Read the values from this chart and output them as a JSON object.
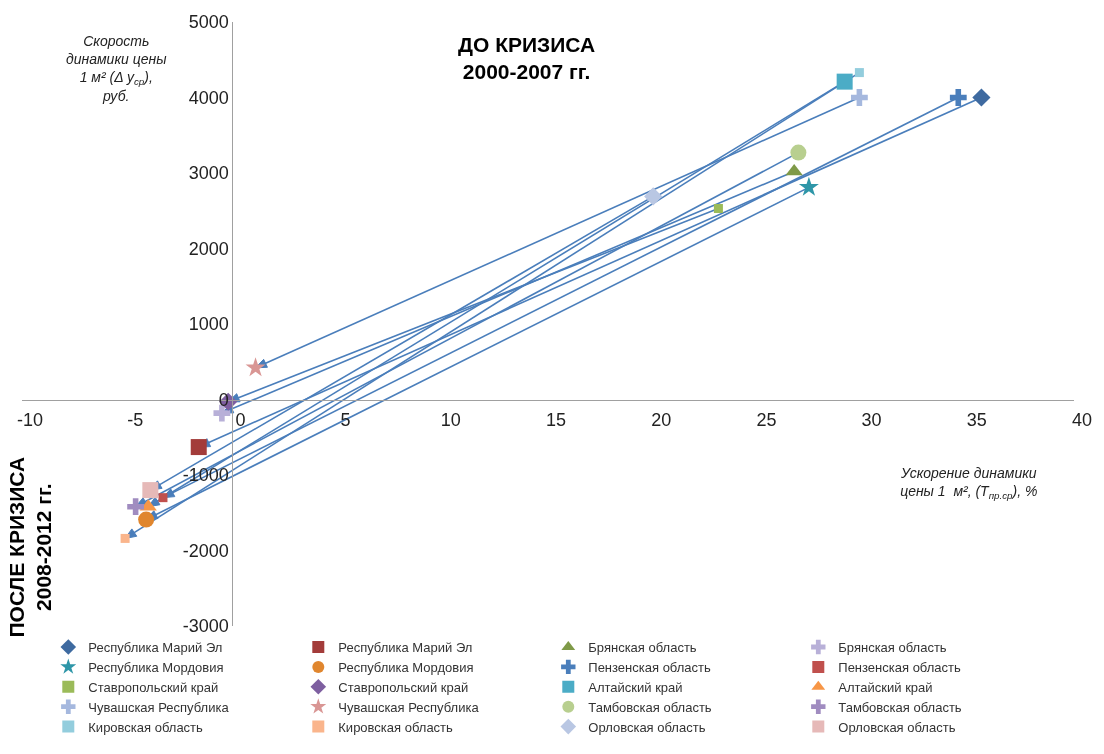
{
  "chart_data": {
    "type": "scatter",
    "xlabel": "Ускорение динамики\nцены 1  м², (T$_{пр.ср}$), %",
    "ylabel": "Скорость\nдинамики цены\n1 м² (Δ у$_{ср}$),\nруб.",
    "annotations": [
      "ДО КРИЗИСА\n2000-2007 гг.",
      "ПОСЛЕ КРИЗИСА\n2008-2012 гг."
    ],
    "xlim": [
      -10,
      40
    ],
    "xticks": [
      -10,
      -5,
      0,
      5,
      10,
      15,
      20,
      25,
      30,
      35,
      40
    ],
    "ylim": [
      -3000,
      5000
    ],
    "yticks": [
      -3000,
      -2000,
      -1000,
      0,
      1000,
      2000,
      3000,
      4000,
      5000
    ],
    "grid": false,
    "legend": "bottom",
    "series": [
      {
        "name": "Республика Марий Эл",
        "x": [
          35.6
        ],
        "values": [
          4000
        ],
        "color": "#3e6aa0",
        "marker": "diamond"
      },
      {
        "name": "Республика Марий Эл",
        "x": [
          -1.6
        ],
        "values": [
          -630
        ],
        "color": "#a33c3a",
        "marker": "square"
      },
      {
        "name": "Брянская область",
        "x": [
          26.7
        ],
        "values": [
          3020
        ],
        "color": "#7f9a48",
        "marker": "triangle"
      },
      {
        "name": "Брянская область",
        "x": [
          -0.5
        ],
        "values": [
          -180
        ],
        "color": "#b8b0d8",
        "marker": "cross"
      },
      {
        "name": "Республика Мордовия",
        "x": [
          27.4
        ],
        "values": [
          2810
        ],
        "color": "#2e96a8",
        "marker": "star"
      },
      {
        "name": "Республика Мордовия",
        "x": [
          -4.1
        ],
        "values": [
          -1590
        ],
        "color": "#e0862e",
        "marker": "circle"
      },
      {
        "name": "Пензенская область",
        "x": [
          34.5
        ],
        "values": [
          4000
        ],
        "color": "#4a7ebb",
        "marker": "cross"
      },
      {
        "name": "Пензенская область",
        "x": [
          -3.3
        ],
        "values": [
          -1300
        ],
        "color": "#c0504d"
      },
      {
        "name": "Ставропольский край",
        "x": [
          23.1
        ],
        "values": [
          2530
        ],
        "color": "#9bbb59"
      },
      {
        "name": "Ставропольский край",
        "x": [
          -0.2
        ],
        "values": [
          -30
        ],
        "color": "#7e5fa0",
        "marker": "diamond"
      },
      {
        "name": "Алтайский край",
        "x": [
          29.1
        ],
        "values": [
          4210
        ],
        "color": "#4bacc6",
        "marker": "square"
      },
      {
        "name": "Алтайский край",
        "x": [
          -4.0
        ],
        "values": [
          -1420
        ],
        "color": "#f79646",
        "marker": "triangle"
      },
      {
        "name": "Чувашская Республика",
        "x": [
          29.8
        ],
        "values": [
          4000
        ],
        "color": "#a5b8de",
        "marker": "cross"
      },
      {
        "name": "Чувашская Республика",
        "x": [
          1.1
        ],
        "values": [
          420
        ],
        "color": "#d99694",
        "marker": "star"
      },
      {
        "name": "Тамбовская область",
        "x": [
          26.9
        ],
        "values": [
          3270
        ],
        "color": "#b8cf8f",
        "marker": "circle"
      },
      {
        "name": "Тамбовская область",
        "x": [
          -4.6
        ],
        "values": [
          -1420
        ],
        "color": "#a08cc0",
        "marker": "cross"
      },
      {
        "name": "Кировская область",
        "x": [
          29.8
        ],
        "values": [
          4330
        ],
        "color": "#93cddd"
      },
      {
        "name": "Кировская область",
        "x": [
          -5.1
        ],
        "values": [
          -1840
        ],
        "color": "#fab58c"
      },
      {
        "name": "Орловская область",
        "x": [
          20.0
        ],
        "values": [
          2690
        ],
        "color": "#b9c7e3",
        "marker": "diamond"
      },
      {
        "name": "Орловская область",
        "x": [
          -3.9
        ],
        "values": [
          -1200
        ],
        "color": "#e6b9b8",
        "marker": "square"
      }
    ]
  }
}
